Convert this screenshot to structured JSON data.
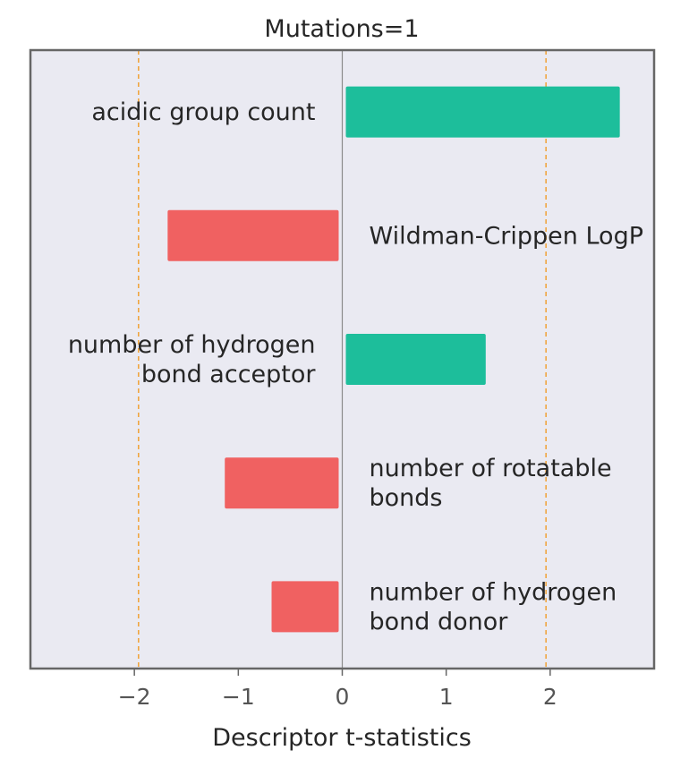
{
  "chart_data": {
    "type": "bar",
    "orientation": "horizontal",
    "title": "Mutations=1",
    "xlabel": "Descriptor t-statistics",
    "ylabel": "",
    "xlim": [
      -3.0,
      3.0
    ],
    "xticks": [
      -2,
      -1,
      0,
      1,
      2
    ],
    "xtick_labels": [
      "−2",
      "−1",
      "0",
      "1",
      "2"
    ],
    "grid": false,
    "reference_lines": [
      {
        "x": -1.96,
        "style": "dashed",
        "color": "#f0a541"
      },
      {
        "x": 1.96,
        "style": "dashed",
        "color": "#f0a541"
      },
      {
        "x": 0,
        "style": "solid",
        "color": "#8c8c8c"
      }
    ],
    "categories": [
      "acidic group count",
      "Wildman-Crippen LogP",
      "number of hydrogen bond acceptor",
      "number of rotatable bonds",
      "number of hydrogen bond donor"
    ],
    "label_lines": [
      [
        "acidic group count"
      ],
      [
        "Wildman-Crippen LogP"
      ],
      [
        "number of hydrogen",
        "bond acceptor"
      ],
      [
        "number of rotatable",
        "bonds"
      ],
      [
        "number of hydrogen",
        "bond donor"
      ]
    ],
    "values": [
      2.67,
      -1.68,
      1.38,
      -1.13,
      -0.68
    ],
    "colors": {
      "positive": "#1dbe9b",
      "negative": "#f06161",
      "plot_background": "#eaeaf2",
      "frame": "#666666"
    }
  }
}
